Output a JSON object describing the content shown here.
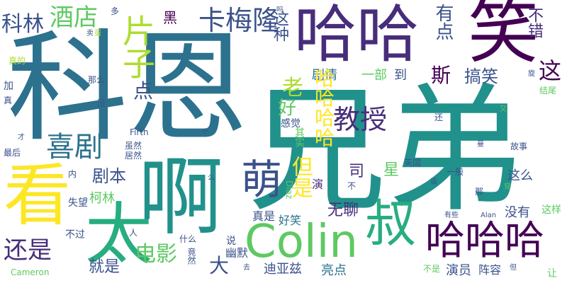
{
  "colors": {
    "navy": "#3b528b",
    "teal": "#21918c",
    "green": "#5ec962",
    "purple": "#440154",
    "yellow": "#fde725",
    "blue": "#2c728e",
    "sea": "#27ad81",
    "indigo": "#472d7b",
    "lime": "#addc30"
  },
  "words": [
    {
      "text": "科恩",
      "color": "#2c728e"
    },
    {
      "text": "兄弟",
      "color": "#21918c"
    },
    {
      "text": "笑",
      "color": "#440154"
    },
    {
      "text": "哈哈",
      "color": "#472d7b"
    },
    {
      "text": "啊",
      "color": "#21918c"
    },
    {
      "text": "看",
      "color": "#fde725"
    },
    {
      "text": "太",
      "color": "#27ad81"
    },
    {
      "text": "Colin",
      "color": "#5ec962"
    },
    {
      "text": "哈哈哈",
      "color": "#440154"
    },
    {
      "text": "萌",
      "color": "#3b528b"
    },
    {
      "text": "叔",
      "color": "#27ad81"
    },
    {
      "text": "卡梅隆",
      "color": "#3b528b"
    },
    {
      "text": "酒店",
      "color": "#5ec962"
    },
    {
      "text": "片子",
      "color": "#addc30"
    },
    {
      "text": "科林",
      "color": "#3b528b"
    },
    {
      "text": "黑",
      "color": "#440154"
    },
    {
      "text": "有点",
      "color": "#3b528b"
    },
    {
      "text": "不错",
      "color": "#472d7b"
    },
    {
      "text": "这",
      "color": "#440154"
    },
    {
      "text": "这种",
      "color": "#3b528b"
    },
    {
      "text": "斯",
      "color": "#440154"
    },
    {
      "text": "搞笑",
      "color": "#3b528b"
    },
    {
      "text": "教授",
      "color": "#472d7b"
    },
    {
      "text": "喜剧",
      "color": "#2c728e"
    },
    {
      "text": "点",
      "color": "#3b528b"
    },
    {
      "text": "老",
      "color": "#addc30"
    },
    {
      "text": "好",
      "color": "#5ec962"
    },
    {
      "text": "剧本",
      "color": "#3b528b"
    },
    {
      "text": "剧情",
      "color": "#2c728e"
    },
    {
      "text": "一部",
      "color": "#5ec962"
    },
    {
      "text": "到",
      "color": "#3b528b"
    },
    {
      "text": "哈哈哈哈",
      "color": "#fde725"
    },
    {
      "text": "但是",
      "color": "#fde725"
    },
    {
      "text": "司",
      "color": "#472d7b"
    },
    {
      "text": "星",
      "color": "#5ec962"
    },
    {
      "text": "还是",
      "color": "#472d7b"
    },
    {
      "text": "电影",
      "color": "#5ec962"
    },
    {
      "text": "大",
      "color": "#3b528b"
    },
    {
      "text": "就是",
      "color": "#3b528b"
    },
    {
      "text": "无聊",
      "color": "#472d7b"
    },
    {
      "text": "迪亚兹",
      "color": "#3b528b"
    },
    {
      "text": "亮点",
      "color": "#2c728e"
    },
    {
      "text": "演员",
      "color": "#3b528b"
    },
    {
      "text": "阵容",
      "color": "#3b528b"
    },
    {
      "text": "没有",
      "color": "#3b528b"
    },
    {
      "text": "这么",
      "color": "#3b528b"
    },
    {
      "text": "这样",
      "color": "#5ec962"
    },
    {
      "text": "幽默",
      "color": "#3b528b"
    },
    {
      "text": "真是",
      "color": "#3b528b"
    },
    {
      "text": "好笑",
      "color": "#2c728e"
    },
    {
      "text": "柯林",
      "color": "#5ec962"
    },
    {
      "text": "失望",
      "color": "#3b528b"
    },
    {
      "text": "不过",
      "color": "#3b528b"
    },
    {
      "text": "Cameron",
      "color": "#5ec962"
    },
    {
      "text": "居然",
      "color": "#3b528b"
    },
    {
      "text": "虽然",
      "color": "#3b528b"
    },
    {
      "text": "Firth",
      "color": "#3b528b"
    },
    {
      "text": "感觉",
      "color": "#3b528b"
    },
    {
      "text": "其实",
      "color": "#5ec962"
    },
    {
      "text": "英国",
      "color": "#3b528b"
    },
    {
      "text": "一般",
      "color": "#3b528b"
    },
    {
      "text": "故事",
      "color": "#3b528b"
    },
    {
      "text": "结尾",
      "color": "#5ec962"
    },
    {
      "text": "Alan",
      "color": "#3b528b"
    },
    {
      "text": "有些",
      "color": "#3b528b"
    },
    {
      "text": "不是",
      "color": "#5ec962"
    },
    {
      "text": "Diaz",
      "color": "#5ec962"
    },
    {
      "text": "真的",
      "color": "#addc30"
    },
    {
      "text": "那么",
      "color": "#3b528b"
    },
    {
      "text": "最后",
      "color": "#3b528b"
    },
    {
      "text": "加",
      "color": "#3b528b"
    },
    {
      "text": "真",
      "color": "#3b528b"
    },
    {
      "text": "才",
      "color": "#3b528b"
    },
    {
      "text": "没",
      "color": "#3b528b"
    },
    {
      "text": "多",
      "color": "#3b528b"
    },
    {
      "text": "卖",
      "color": "#3b528b"
    },
    {
      "text": "蛋",
      "color": "#addc30"
    },
    {
      "text": "吗",
      "color": "#3b528b"
    },
    {
      "text": "还",
      "color": "#3b528b"
    },
    {
      "text": "又",
      "color": "#5ec962"
    },
    {
      "text": "曼",
      "color": "#3b528b"
    },
    {
      "text": "旋",
      "color": "#3b528b"
    },
    {
      "text": "那",
      "color": "#3b528b"
    },
    {
      "text": "穿",
      "color": "#5ec962"
    },
    {
      "text": "个",
      "color": "#3b528b"
    },
    {
      "text": "么",
      "color": "#3b528b"
    },
    {
      "text": "内",
      "color": "#3b528b"
    },
    {
      "text": "人",
      "color": "#3b528b"
    },
    {
      "text": "什么",
      "color": "#3b528b"
    },
    {
      "text": "说",
      "color": "#3b528b"
    },
    {
      "text": "竟然",
      "color": "#3b528b"
    },
    {
      "text": "去",
      "color": "#3b528b"
    },
    {
      "text": "但",
      "color": "#3b528b"
    },
    {
      "text": "让",
      "color": "#5ec962"
    },
    {
      "text": "不",
      "color": "#3b528b"
    },
    {
      "text": "谣",
      "color": "#3b528b"
    },
    {
      "text": "演",
      "color": "#472d7b"
    }
  ]
}
